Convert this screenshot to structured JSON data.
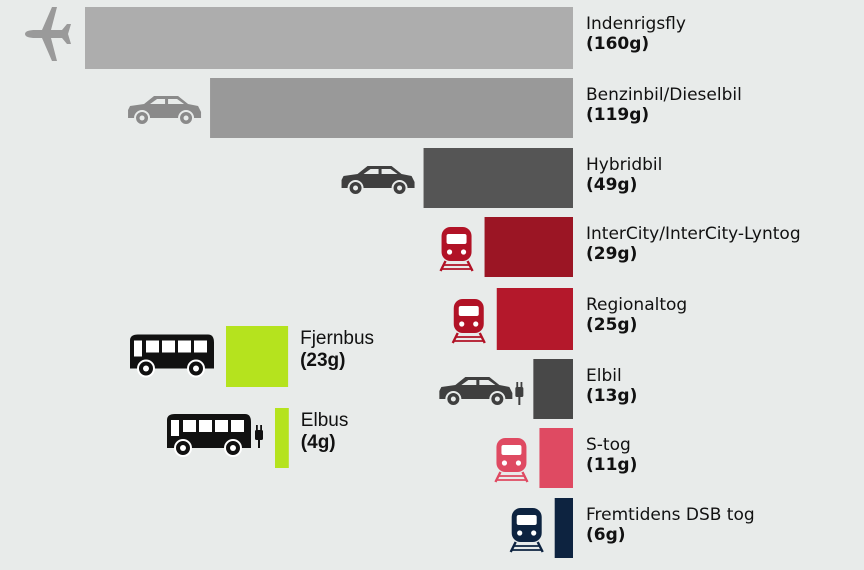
{
  "chart_data": {
    "type": "bar",
    "title": "",
    "xlabel": "",
    "ylabel": "",
    "categories": [
      "Indenrigsfly",
      "Benzinbil/Dieselbil",
      "Hybridbil",
      "InterCity/InterCity-Lyntog",
      "Regionaltog",
      "Elbil",
      "S-tog",
      "Fremtidens DSB tog",
      "Fjernbus",
      "Elbus"
    ],
    "values": [
      160,
      119,
      49,
      29,
      25,
      13,
      11,
      6,
      23,
      4
    ],
    "value_labels": [
      "(160g)",
      "(119g)",
      "(49g)",
      "(29g)",
      "(25g)",
      "(13g)",
      "(11g)",
      "(6g)",
      "(23g)",
      "(4g)"
    ],
    "bar_colors": [
      "#adadad",
      "#999999",
      "#555555",
      "#9b1524",
      "#b4182b",
      "#484848",
      "#df4a62",
      "#0d2340",
      "#b5e31e",
      "#b5e31e"
    ],
    "icons": [
      "plane-icon",
      "car-icon",
      "car-icon",
      "train-icon",
      "train-icon",
      "electric-car-icon",
      "train-icon",
      "train-icon",
      "bus-icon",
      "electric-bus-icon"
    ],
    "icon_colors": [
      "#9a9a9a",
      "#8a8a8a",
      "#3f3f3f",
      "#b11226",
      "#b11226",
      "#3f3f3f",
      "#df4a62",
      "#0d2340",
      "#111111",
      "#111111"
    ],
    "grid": false,
    "legend": "none"
  }
}
